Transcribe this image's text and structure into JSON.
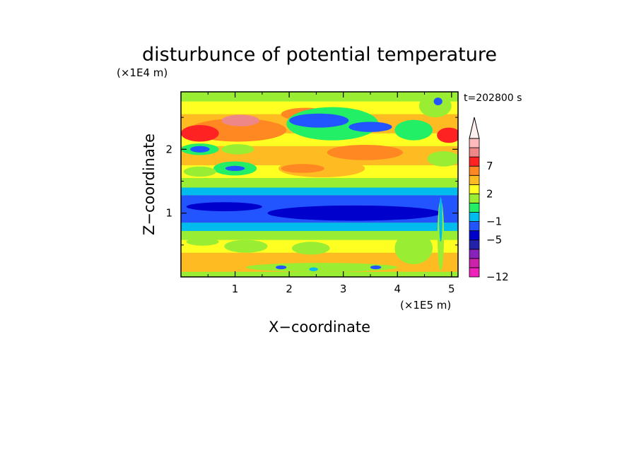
{
  "chart_data": {
    "type": "heatmap",
    "title": "disturbunce of potential temperature",
    "xlabel": "X−coordinate",
    "ylabel": "Z−coordinate",
    "x_unit": "(×1E5 m)",
    "y_unit": "(×1E4 m)",
    "time_label": "t=202800 s",
    "xlim": [
      0,
      5.12
    ],
    "ylim": [
      0,
      2.9
    ],
    "x_ticks": [
      {
        "value": 1,
        "label": "1"
      },
      {
        "value": 2,
        "label": "2"
      },
      {
        "value": 3,
        "label": "3"
      },
      {
        "value": 4,
        "label": "4"
      },
      {
        "value": 5,
        "label": "5"
      }
    ],
    "y_ticks": [
      {
        "value": 1,
        "label": "1"
      },
      {
        "value": 2,
        "label": "2"
      }
    ],
    "colorbar": {
      "levels": [
        -12,
        -11,
        -9,
        -7,
        -5,
        -3,
        -1,
        0,
        1,
        2,
        3,
        5,
        7,
        9,
        11
      ],
      "colors": [
        "#ee22bb",
        "#cc22aa",
        "#8822bb",
        "#2222aa",
        "#0000cc",
        "#2255ff",
        "#00bbee",
        "#22ee66",
        "#99ee33",
        "#ffff22",
        "#ffbb22",
        "#ff8822",
        "#ff2222",
        "#ee8888",
        "#ffbbbb",
        "#fff0f0"
      ],
      "tick_labels": [
        {
          "value": 7,
          "label": "7"
        },
        {
          "value": 2,
          "label": "2"
        },
        {
          "value": -1,
          "label": "−1"
        },
        {
          "value": -5,
          "label": "−5"
        },
        {
          "value": -12,
          "label": "−12"
        }
      ]
    },
    "field_bands": [
      {
        "z": [
          0.0,
          0.08
        ],
        "value": 0.5
      },
      {
        "z": [
          0.08,
          0.38
        ],
        "value": 2.5
      },
      {
        "z": [
          0.38,
          0.58
        ],
        "value": 1.2
      },
      {
        "z": [
          0.58,
          0.72
        ],
        "value": 0.3
      },
      {
        "z": [
          0.72,
          0.85
        ],
        "value": -2
      },
      {
        "z": [
          0.85,
          1.28
        ],
        "value": -4.2
      },
      {
        "z": [
          1.28,
          1.4
        ],
        "value": -2
      },
      {
        "z": [
          1.4,
          1.55
        ],
        "value": 0.3
      },
      {
        "z": [
          1.55,
          1.75
        ],
        "value": 1.5
      },
      {
        "z": [
          1.75,
          2.05
        ],
        "value": 2.5
      },
      {
        "z": [
          2.05,
          2.25
        ],
        "value": 1.5
      },
      {
        "z": [
          2.25,
          2.55
        ],
        "value": 2.5
      },
      {
        "z": [
          2.55,
          2.75
        ],
        "value": 1.5
      },
      {
        "z": [
          2.75,
          2.9
        ],
        "value": 0.5
      }
    ],
    "features": [
      {
        "x": 1.05,
        "z": 2.3,
        "rx": 0.9,
        "rz": 0.18,
        "value": 4.2
      },
      {
        "x": 1.1,
        "z": 2.45,
        "rx": 0.35,
        "rz": 0.09,
        "value": 8
      },
      {
        "x": 0.35,
        "z": 2.25,
        "rx": 0.35,
        "rz": 0.13,
        "value": 6
      },
      {
        "x": 4.95,
        "z": 2.22,
        "rx": 0.22,
        "rz": 0.12,
        "value": 6
      },
      {
        "x": 2.3,
        "z": 2.55,
        "rx": 0.45,
        "rz": 0.1,
        "value": 4.2
      },
      {
        "x": 0.9,
        "z": 2.88,
        "rx": 0.55,
        "rz": 0.06,
        "value": 0.3
      },
      {
        "x": 2.8,
        "z": 2.85,
        "rx": 0.55,
        "rz": 0.06,
        "value": 0.5
      },
      {
        "x": 4.7,
        "z": 2.68,
        "rx": 0.3,
        "rz": 0.18,
        "value": 0.5
      },
      {
        "x": 2.8,
        "z": 2.4,
        "rx": 0.85,
        "rz": 0.26,
        "value": -0.5
      },
      {
        "x": 2.55,
        "z": 2.45,
        "rx": 0.55,
        "rz": 0.11,
        "value": -4
      },
      {
        "x": 3.5,
        "z": 2.35,
        "rx": 0.4,
        "rz": 0.08,
        "value": -4
      },
      {
        "x": 4.3,
        "z": 2.3,
        "rx": 0.35,
        "rz": 0.16,
        "value": -0.5
      },
      {
        "x": 4.75,
        "z": 2.75,
        "rx": 0.08,
        "rz": 0.06,
        "value": -4
      },
      {
        "x": 0.35,
        "z": 2.0,
        "rx": 0.35,
        "rz": 0.09,
        "value": -0.5
      },
      {
        "x": 0.35,
        "z": 2.0,
        "rx": 0.18,
        "rz": 0.05,
        "value": -4
      },
      {
        "x": 1.05,
        "z": 2.0,
        "rx": 0.3,
        "rz": 0.08,
        "value": 0.5
      },
      {
        "x": 3.4,
        "z": 1.95,
        "rx": 0.7,
        "rz": 0.12,
        "value": 4.2
      },
      {
        "x": 2.6,
        "z": 1.7,
        "rx": 0.8,
        "rz": 0.14,
        "value": 2.5
      },
      {
        "x": 2.25,
        "z": 1.7,
        "rx": 0.4,
        "rz": 0.07,
        "value": 4.2
      },
      {
        "x": 1.0,
        "z": 1.7,
        "rx": 0.4,
        "rz": 0.11,
        "value": -0.5
      },
      {
        "x": 1.0,
        "z": 1.7,
        "rx": 0.18,
        "rz": 0.04,
        "value": -4
      },
      {
        "x": 0.35,
        "z": 1.65,
        "rx": 0.3,
        "rz": 0.08,
        "value": 0.5
      },
      {
        "x": 4.85,
        "z": 1.85,
        "rx": 0.3,
        "rz": 0.12,
        "value": 0.5
      },
      {
        "x": 3.2,
        "z": 1.0,
        "rx": 1.6,
        "rz": 0.12,
        "value": -5.5
      },
      {
        "x": 0.8,
        "z": 1.1,
        "rx": 0.7,
        "rz": 0.07,
        "value": -5.5
      },
      {
        "x": 4.8,
        "z": 0.65,
        "rx": 0.06,
        "rz": 0.55,
        "value": 0.5
      },
      {
        "x": 4.8,
        "z": 0.9,
        "rx": 0.03,
        "rz": 0.35,
        "value": -1.5
      },
      {
        "x": 4.3,
        "z": 0.45,
        "rx": 0.35,
        "rz": 0.25,
        "value": 0.5
      },
      {
        "x": 1.2,
        "z": 0.48,
        "rx": 0.4,
        "rz": 0.1,
        "value": 0.5
      },
      {
        "x": 2.4,
        "z": 0.45,
        "rx": 0.35,
        "rz": 0.1,
        "value": 0.5
      },
      {
        "x": 0.4,
        "z": 0.55,
        "rx": 0.3,
        "rz": 0.06,
        "value": 0.5
      },
      {
        "x": 2.6,
        "z": 0.15,
        "rx": 1.4,
        "rz": 0.07,
        "value": 0.5
      },
      {
        "x": 1.85,
        "z": 0.15,
        "rx": 0.1,
        "rz": 0.03,
        "value": -4
      },
      {
        "x": 3.6,
        "z": 0.15,
        "rx": 0.1,
        "rz": 0.03,
        "value": -4
      },
      {
        "x": 2.45,
        "z": 0.12,
        "rx": 0.08,
        "rz": 0.03,
        "value": -1.5
      }
    ]
  }
}
